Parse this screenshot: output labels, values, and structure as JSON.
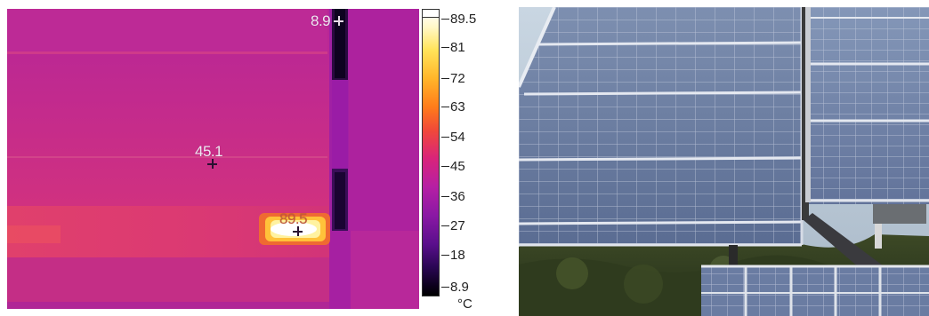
{
  "thermal_image": {
    "spot_markers": [
      {
        "id": "min",
        "value": "8.9"
      },
      {
        "id": "center",
        "value": "45.1"
      },
      {
        "id": "max",
        "value": "89.5"
      }
    ]
  },
  "color_scale": {
    "max": "89.5",
    "ticks": [
      "81",
      "72",
      "63",
      "54",
      "45",
      "36",
      "27",
      "18"
    ],
    "min": "8.9",
    "unit": "°C",
    "colors": {
      "hot": "#ffffff",
      "warm": "#ffb62a",
      "mid": "#d9247a",
      "cool": "#5a0f8c",
      "cold": "#000000"
    }
  },
  "photo": {
    "subject": "solar-panel-array"
  }
}
